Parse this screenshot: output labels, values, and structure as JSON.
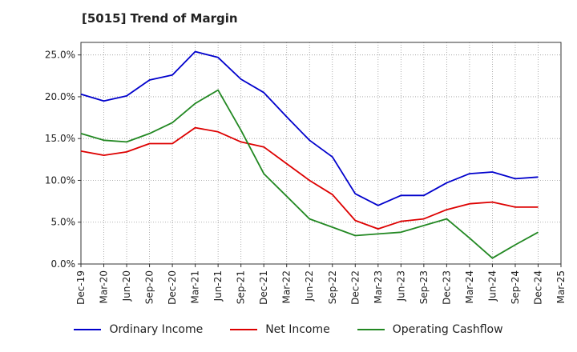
{
  "chart_data": {
    "type": "line",
    "title": "[5015]  Trend of Margin",
    "xlabel": "",
    "ylabel": "",
    "x": [
      "Dec-19",
      "Mar-20",
      "Jun-20",
      "Sep-20",
      "Dec-20",
      "Mar-21",
      "Jun-21",
      "Sep-21",
      "Dec-21",
      "Mar-22",
      "Jun-22",
      "Sep-22",
      "Dec-22",
      "Mar-23",
      "Jun-23",
      "Sep-23",
      "Dec-23",
      "Mar-24",
      "Jun-24",
      "Sep-24",
      "Dec-24",
      "Mar-25"
    ],
    "y_ticks": [
      "0.0%",
      "5.0%",
      "10.0%",
      "15.0%",
      "20.0%",
      "25.0%"
    ],
    "ylim": [
      0,
      26.5
    ],
    "grid": true,
    "legend_position": "bottom",
    "series": [
      {
        "name": "Ordinary Income",
        "color": "#0000cc",
        "values": [
          20.3,
          19.5,
          20.1,
          22.0,
          22.6,
          25.4,
          24.7,
          22.1,
          20.5,
          17.6,
          14.8,
          12.8,
          8.4,
          7.0,
          8.2,
          8.2,
          9.7,
          10.8,
          11.0,
          10.2,
          10.4,
          null
        ]
      },
      {
        "name": "Net Income",
        "color": "#dd0000",
        "values": [
          13.5,
          13.0,
          13.4,
          14.4,
          14.4,
          16.3,
          15.8,
          14.6,
          14.0,
          12.0,
          10.0,
          8.3,
          5.2,
          4.2,
          5.1,
          5.4,
          6.5,
          7.2,
          7.4,
          6.8,
          6.8,
          null
        ]
      },
      {
        "name": "Operating Cashflow",
        "color": "#228822",
        "values": [
          15.6,
          14.8,
          14.6,
          15.6,
          16.9,
          19.2,
          20.8,
          16.0,
          10.8,
          8.1,
          5.4,
          4.4,
          3.4,
          3.6,
          3.8,
          4.6,
          5.4,
          3.1,
          0.7,
          2.3,
          3.8,
          null
        ]
      }
    ]
  }
}
